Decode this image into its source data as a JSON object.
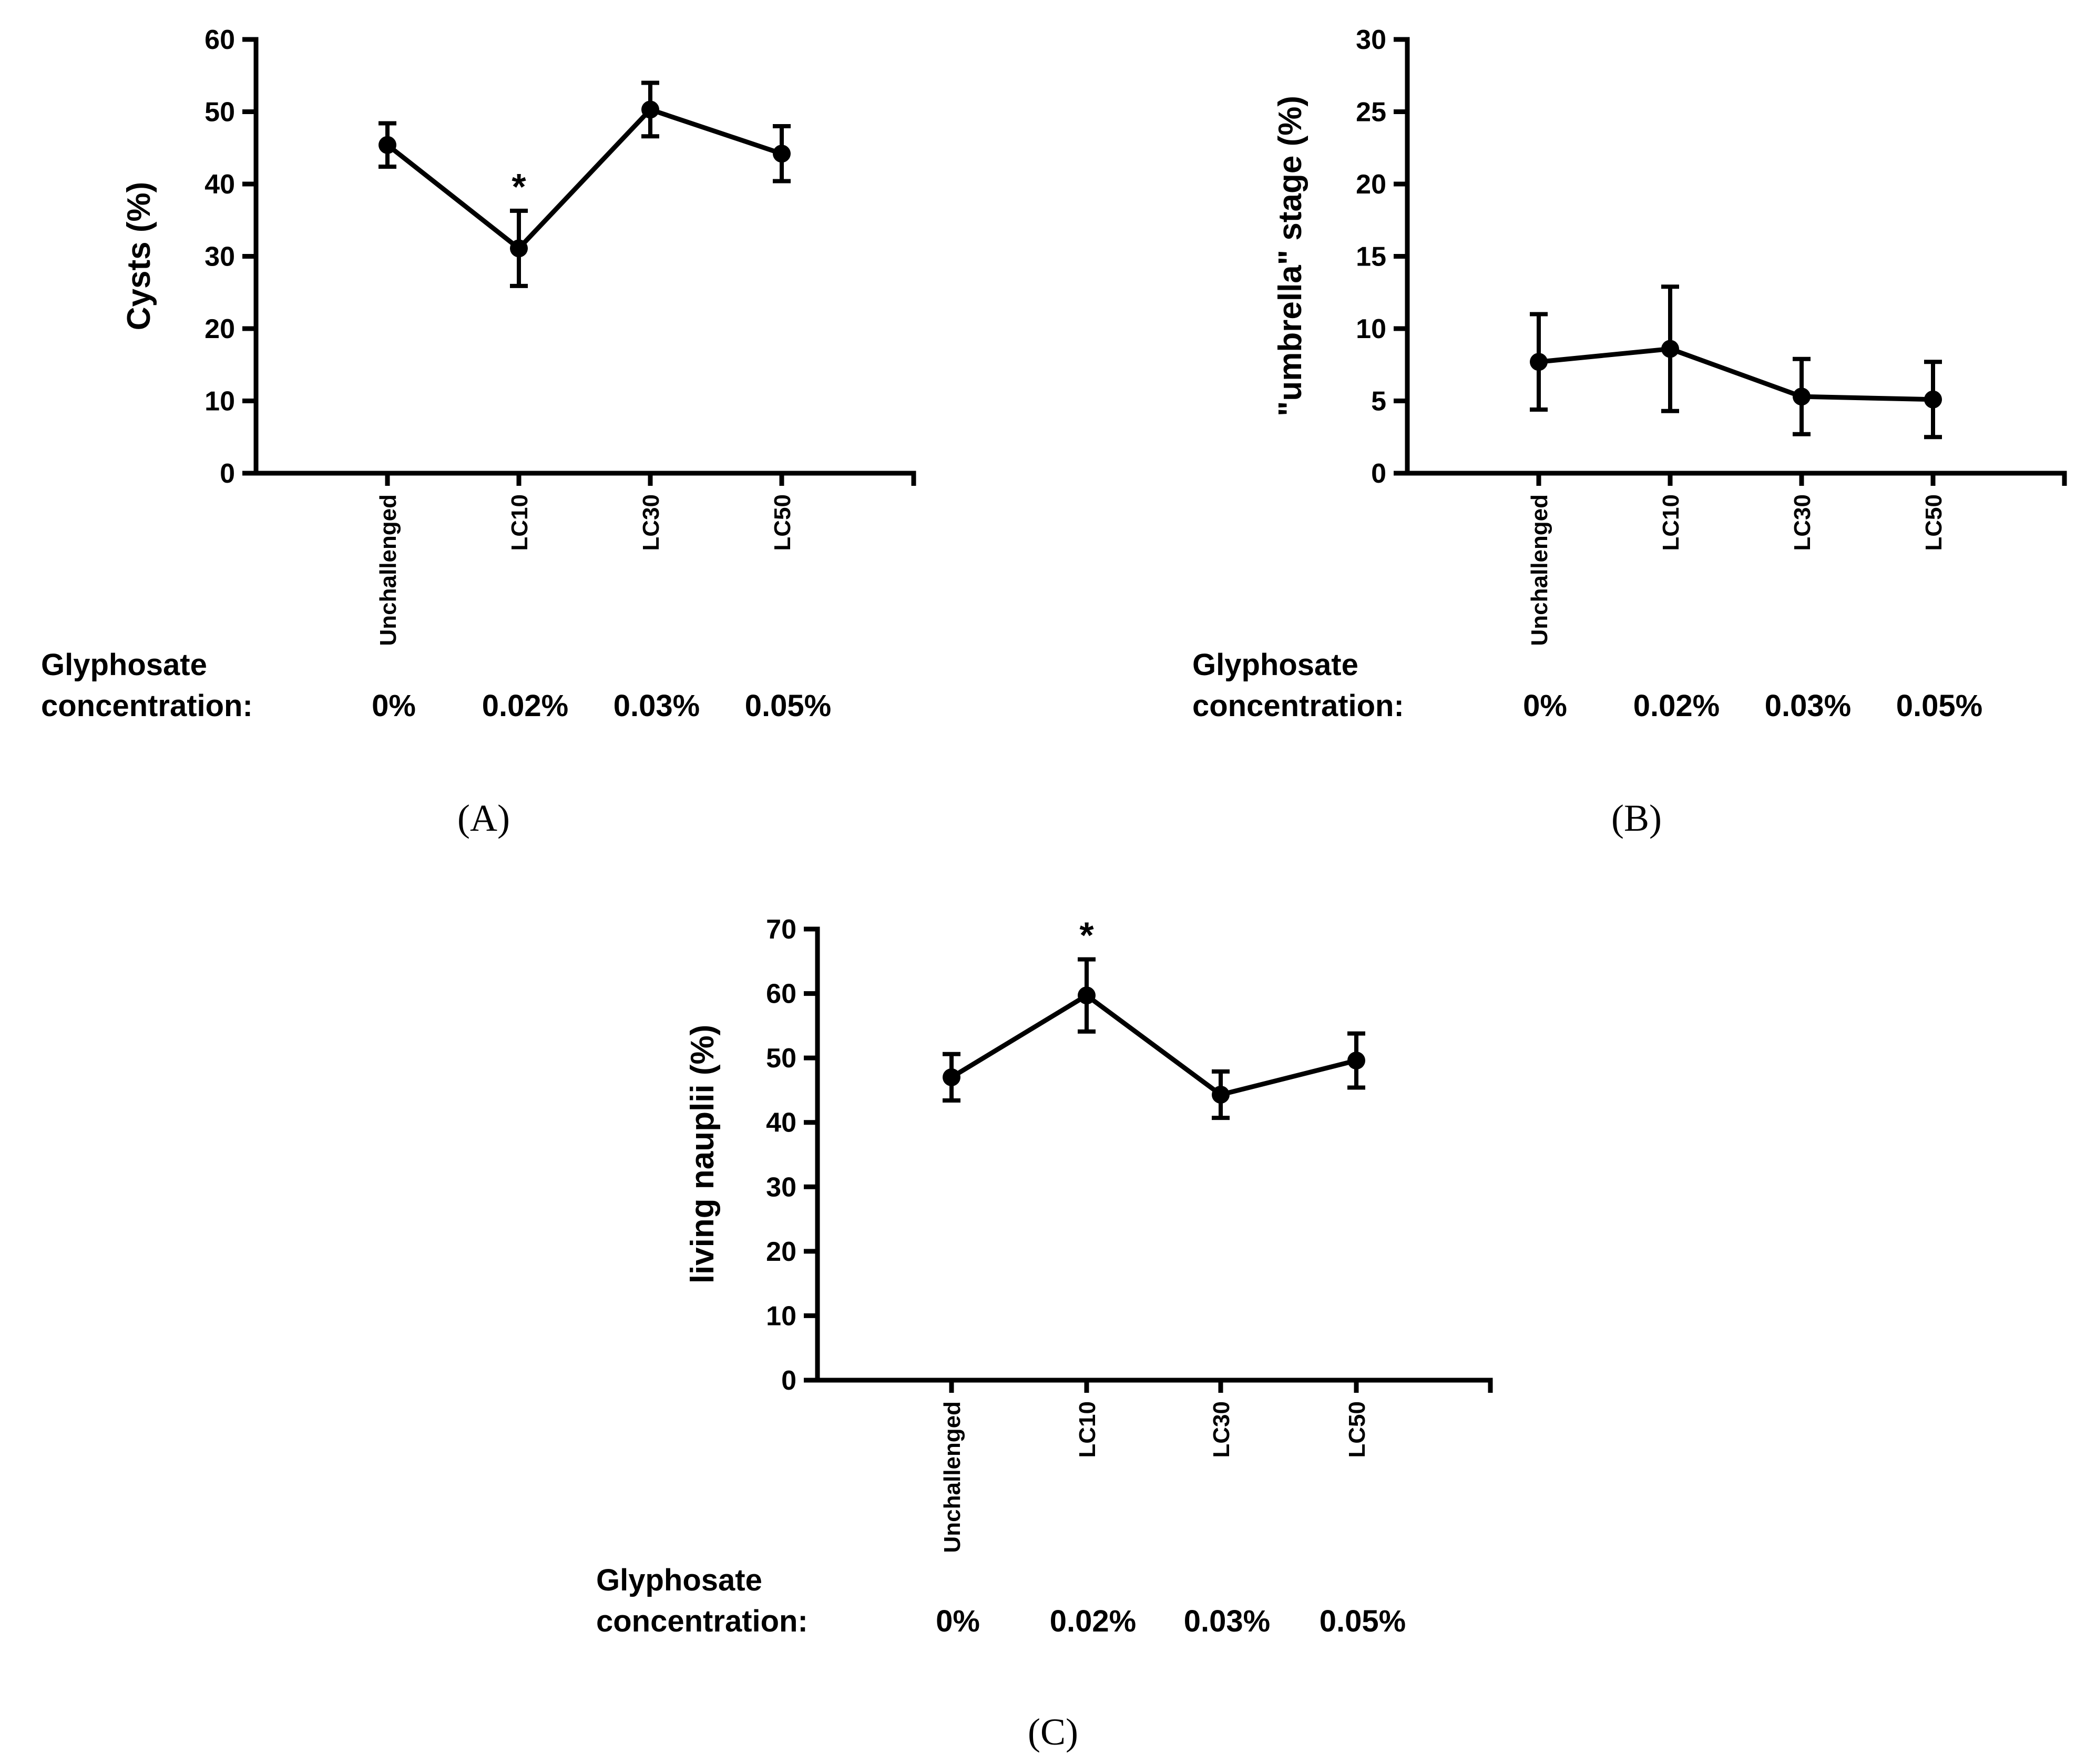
{
  "conc_title_line1": "Glyphosate",
  "conc_title_line2": "concentration:",
  "chart_data": [
    {
      "type": "line",
      "panel": "(A)",
      "ylabel": "Cysts (%)",
      "ylim": [
        0,
        60
      ],
      "yticks": [
        0,
        10,
        20,
        30,
        40,
        50,
        60
      ],
      "categories": [
        "Unchallenged",
        "LC10",
        "LC30",
        "LC50"
      ],
      "concentrations": [
        "0%",
        "0.02%",
        "0.03%",
        "0.05%"
      ],
      "values": [
        45.4,
        31.1,
        50.3,
        44.2
      ],
      "errors": [
        3.0,
        5.2,
        3.7,
        3.8
      ],
      "significant": [
        "",
        "*",
        "",
        ""
      ]
    },
    {
      "type": "line",
      "panel": "(B)",
      "ylabel": "\"umbrella\" stage (%)",
      "ylim": [
        0,
        30
      ],
      "yticks": [
        0,
        5,
        10,
        15,
        20,
        25,
        30
      ],
      "categories": [
        "Unchallenged",
        "LC10",
        "LC30",
        "LC50"
      ],
      "concentrations": [
        "0%",
        "0.02%",
        "0.03%",
        "0.05%"
      ],
      "values": [
        7.7,
        8.6,
        5.3,
        5.1
      ],
      "errors": [
        3.3,
        4.3,
        2.6,
        2.6
      ],
      "significant": [
        "",
        "",
        "",
        ""
      ]
    },
    {
      "type": "line",
      "panel": "(C)",
      "ylabel": "living nauplii (%)",
      "ylim": [
        0,
        70
      ],
      "yticks": [
        0,
        10,
        20,
        30,
        40,
        50,
        60,
        70
      ],
      "categories": [
        "Unchallenged",
        "LC10",
        "LC30",
        "LC50"
      ],
      "concentrations": [
        "0%",
        "0.02%",
        "0.03%",
        "0.05%"
      ],
      "values": [
        47.0,
        59.7,
        44.3,
        49.6
      ],
      "errors": [
        3.6,
        5.6,
        3.6,
        4.2
      ],
      "significant": [
        "",
        "*",
        "",
        ""
      ]
    }
  ]
}
